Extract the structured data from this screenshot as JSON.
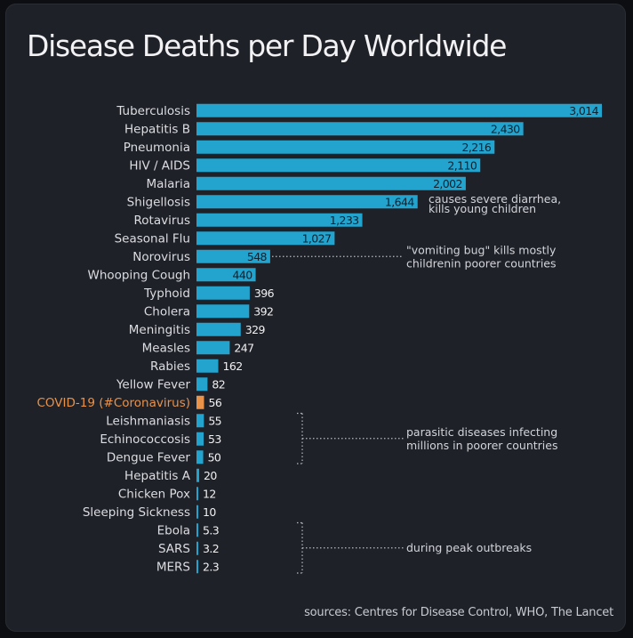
{
  "title": "Disease Deaths per Day Worldwide",
  "source": "sources: Centres for Disease Control, WHO, The Lancet",
  "colors": {
    "bar": "#22a4cf",
    "highlight": "#e8924a",
    "label": "#dcdde2",
    "background": "#1f2128"
  },
  "chart_data": {
    "type": "bar",
    "orientation": "horizontal",
    "categories": [
      "Tuberculosis",
      "Hepatitis B",
      "Pneumonia",
      "HIV / AIDS",
      "Malaria",
      "Shigellosis",
      "Rotavirus",
      "Seasonal Flu",
      "Norovirus",
      "Whooping Cough",
      "Typhoid",
      "Cholera",
      "Meningitis",
      "Measles",
      "Rabies",
      "Yellow Fever",
      "COVID-19 (#Coronavirus)",
      "Leishmaniasis",
      "Echinococcosis",
      "Dengue Fever",
      "Hepatitis A",
      "Chicken Pox",
      "Sleeping Sickness",
      "Ebola",
      "SARS",
      "MERS"
    ],
    "values": [
      3014,
      2430,
      2216,
      2110,
      2002,
      1644,
      1233,
      1027,
      548,
      440,
      396,
      392,
      329,
      247,
      162,
      82,
      56,
      55,
      53,
      50,
      20,
      12,
      10,
      5.3,
      3.2,
      2.3
    ],
    "value_labels": [
      "3,014",
      "2,430",
      "2,216",
      "2,110",
      "2,002",
      "1,644",
      "1,233",
      "1,027",
      "548",
      "440",
      "396",
      "392",
      "329",
      "247",
      "162",
      "82",
      "56",
      "55",
      "53",
      "50",
      "20",
      "12",
      "10",
      "5.3",
      "3.2",
      "2.3"
    ],
    "highlight_category": "COVID-19 (#Coronavirus)",
    "xlim": [
      0,
      3014
    ],
    "grid": false,
    "annotations": [
      {
        "lines": [
          "causes severe diarrhea,",
          "kills young children"
        ]
      },
      {
        "lines": [
          "\"vomiting bug\" kills mostly",
          "childrenin poorer countries"
        ]
      },
      {
        "lines": [
          "parasitic diseases infecting",
          "millions in poorer countries"
        ]
      },
      {
        "lines": [
          "during peak outbreaks"
        ]
      }
    ]
  }
}
